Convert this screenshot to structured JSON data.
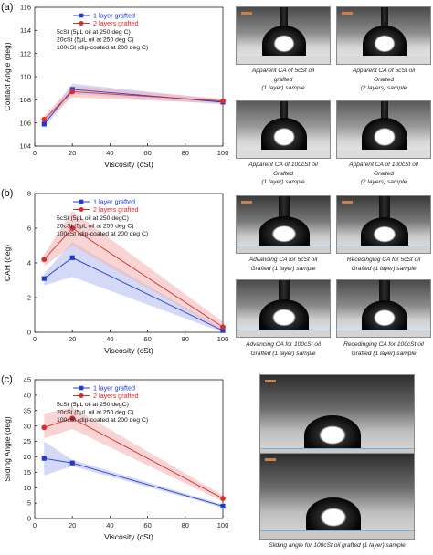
{
  "panels": [
    "(a)",
    "(b)",
    "(c)"
  ],
  "chart_data": [
    {
      "type": "line",
      "panel": "(a)",
      "xlabel": "Viscosity (cSt)",
      "ylabel": "Contact Angle (deg)",
      "xlim": [
        0,
        100
      ],
      "ylim": [
        104,
        116
      ],
      "xticks": [
        0,
        20,
        40,
        60,
        80,
        100
      ],
      "yticks": [
        104,
        106,
        108,
        110,
        112,
        114,
        116
      ],
      "x": [
        5,
        20,
        100
      ],
      "series": [
        {
          "name": "1 layer grafted",
          "values": [
            105.9,
            108.9,
            107.8
          ],
          "band_low": [
            105.6,
            108.5,
            107.6
          ],
          "band_high": [
            106.2,
            109.4,
            108.0
          ],
          "color": "#1f3bd6",
          "band_color": "#aeb9f0",
          "marker": "square"
        },
        {
          "name": "2 layers grafted",
          "values": [
            106.3,
            108.7,
            107.9
          ],
          "band_low": [
            106.0,
            108.2,
            107.7
          ],
          "band_high": [
            106.6,
            109.2,
            108.1
          ],
          "color": "#e02b2b",
          "band_color": "#f4b0b0",
          "marker": "circle"
        }
      ],
      "notes": [
        "5cSt (5μL oil at 250 deg C)",
        "20cSt (5μL oil at 250 deg C)",
        "100cSt (dip-coated at 200 deg C)"
      ],
      "legend": "top-left",
      "grid": false
    },
    {
      "type": "line",
      "panel": "(b)",
      "xlabel": "Viscosity (cSt)",
      "ylabel": "CAH (deg)",
      "xlim": [
        0,
        100
      ],
      "ylim": [
        0,
        8
      ],
      "xticks": [
        0,
        20,
        40,
        60,
        80,
        100
      ],
      "yticks": [
        0,
        2,
        4,
        6,
        8
      ],
      "x": [
        5,
        20,
        100
      ],
      "series": [
        {
          "name": "1 layer grafted",
          "values": [
            3.1,
            4.3,
            0.1
          ],
          "band_low": [
            2.7,
            3.2,
            0.0
          ],
          "band_high": [
            3.4,
            5.2,
            0.2
          ],
          "color": "#1f3bd6",
          "band_color": "#aeb9f0",
          "marker": "square"
        },
        {
          "name": "2 layers grafted",
          "values": [
            4.2,
            6.0,
            0.3
          ],
          "band_low": [
            3.8,
            5.0,
            0.1
          ],
          "band_high": [
            4.5,
            7.0,
            0.6
          ],
          "color": "#e02b2b",
          "band_color": "#f4b0b0",
          "marker": "circle"
        }
      ],
      "notes": [
        "5cSt (5μL oil at 250 degC)",
        "20cSt (5μL oil at 250 deg C)",
        "100cSt (dip-coated at 200 deg C)"
      ],
      "legend": "top-left",
      "grid": false
    },
    {
      "type": "line",
      "panel": "(c)",
      "xlabel": "Viscosity (cSt)",
      "ylabel": "Sliding Angle (deg)",
      "xlim": [
        0,
        100
      ],
      "ylim": [
        0,
        45
      ],
      "xticks": [
        0,
        20,
        40,
        60,
        80,
        100
      ],
      "yticks": [
        0,
        5,
        10,
        15,
        20,
        25,
        30,
        35,
        40,
        45
      ],
      "x": [
        5,
        20,
        100
      ],
      "series": [
        {
          "name": "1 layer grafted",
          "values": [
            19.5,
            18.0,
            4.0
          ],
          "band_low": [
            14.0,
            17.0,
            3.5
          ],
          "band_high": [
            25.0,
            19.0,
            4.5
          ],
          "color": "#1f3bd6",
          "band_color": "#aeb9f0",
          "marker": "square"
        },
        {
          "name": "2 layers grafted",
          "values": [
            29.5,
            32.5,
            6.5
          ],
          "band_low": [
            26.0,
            29.0,
            5.5
          ],
          "band_high": [
            34.0,
            36.0,
            7.5
          ],
          "color": "#e02b2b",
          "band_color": "#f4b0b0",
          "marker": "circle"
        }
      ],
      "notes": [
        "5cSt (5μL oil at 250 degC)",
        "20cSt (5μL oil at 250 deg C)",
        "100cSt (dip-coated at 200 deg C)"
      ],
      "legend": "top-left",
      "grid": false
    }
  ],
  "photo_captions": {
    "a1": [
      "Apparent CA of 5cSt oil",
      "grafted",
      "(1 layer) sample"
    ],
    "a2": [
      "Apparent CA of 5cSt oil",
      "Grafted",
      "(2 layers) sample"
    ],
    "a3": [
      "Apparent CA of 100cSt oil",
      "Grafted",
      "(1 layer) sample"
    ],
    "a4": [
      "Apparent CA of 100cSt oil",
      "Grafted",
      "(2 layers) sample"
    ],
    "b1": [
      "Advancing CA for 5cSt oil",
      "Grafted (1 layer) sample"
    ],
    "b2": [
      "Recedinging CA for 5cSt oil",
      "Grafted (1 layer) sample"
    ],
    "b3": [
      "Advancing CA for 100cSt oil",
      "Grafted (1 layer) sample"
    ],
    "b4": [
      "Recedinging CA for 100cSt oil",
      "Grafted (1 layer) sample"
    ],
    "c1": [
      "Sliding angle for 100cSt oil grafted (1 layer) sample"
    ]
  }
}
